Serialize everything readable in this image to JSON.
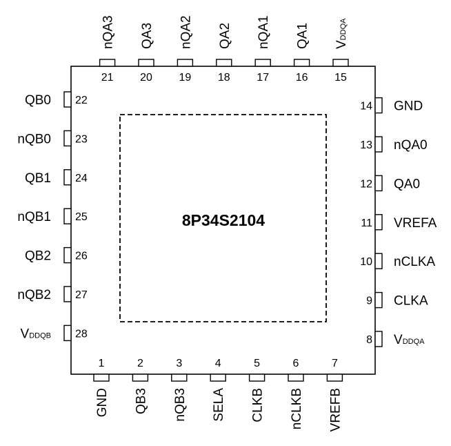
{
  "chip_name": "8P34S2104",
  "pins": [
    {
      "num": "1",
      "name": "GND"
    },
    {
      "num": "2",
      "name": "QB3"
    },
    {
      "num": "3",
      "name": "nQB3"
    },
    {
      "num": "4",
      "name": "SELA"
    },
    {
      "num": "5",
      "name": "CLKB"
    },
    {
      "num": "6",
      "name": "nCLKB"
    },
    {
      "num": "7",
      "name": "VREFB"
    },
    {
      "num": "8",
      "name": "V",
      "sub": "DDQA"
    },
    {
      "num": "9",
      "name": "CLKA"
    },
    {
      "num": "10",
      "name": "nCLKA"
    },
    {
      "num": "11",
      "name": "VREFA"
    },
    {
      "num": "12",
      "name": "QA0"
    },
    {
      "num": "13",
      "name": "nQA0"
    },
    {
      "num": "14",
      "name": "GND"
    },
    {
      "num": "15",
      "name": "V",
      "sub": "DDQA"
    },
    {
      "num": "16",
      "name": "QA1"
    },
    {
      "num": "17",
      "name": "nQA1"
    },
    {
      "num": "18",
      "name": "QA2"
    },
    {
      "num": "19",
      "name": "nQA2"
    },
    {
      "num": "20",
      "name": "QA3"
    },
    {
      "num": "21",
      "name": "nQA3"
    },
    {
      "num": "22",
      "name": "QB0"
    },
    {
      "num": "23",
      "name": "nQB0"
    },
    {
      "num": "24",
      "name": "QB1"
    },
    {
      "num": "25",
      "name": "nQB1"
    },
    {
      "num": "26",
      "name": "QB2"
    },
    {
      "num": "27",
      "name": "nQB2"
    },
    {
      "num": "28",
      "name": "V",
      "sub": "DDQB"
    }
  ]
}
